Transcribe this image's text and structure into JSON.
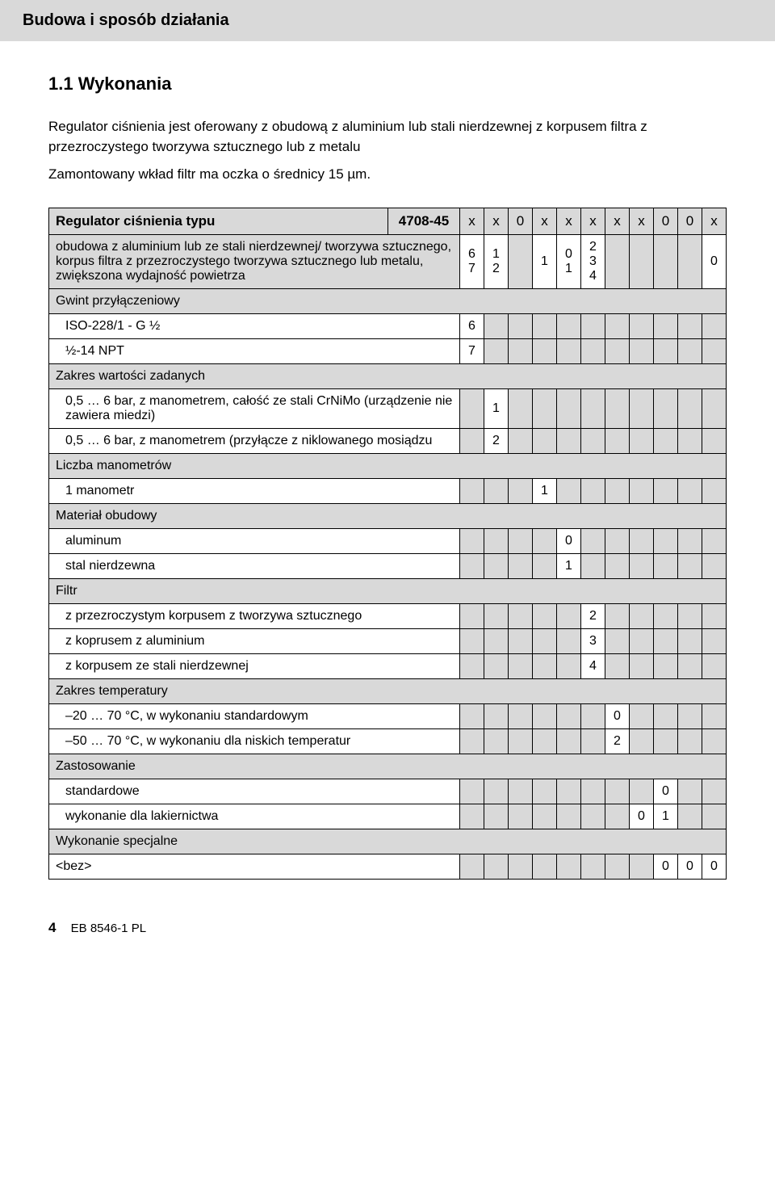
{
  "header_title": "Budowa i sposób działania",
  "section_title": "1.1 Wykonania",
  "paragraph1": "Regulator ciśnienia jest oferowany z obudową z aluminium lub stali nierdzewnej z korpusem filtra z przezroczystego tworzywa sztucznego lub z metalu",
  "paragraph2": "Zamontowany wkład filtr ma oczka o średnicy 15 µm.",
  "table": {
    "header_label": "Regulator ciśnienia typu",
    "header_code": "4708-45",
    "header_cols": [
      "x",
      "x",
      "0",
      "x",
      "x",
      "x",
      "x",
      "x",
      "0",
      "0",
      "x"
    ],
    "rows": [
      {
        "label": "obudowa z aluminium lub ze stali nierdzewnej/ tworzywa sztucznego, korpus filtra z przezroczystego tworzywa sztucznego lub metalu, zwiększona wydajność powietrza",
        "vals": [
          "6\n7",
          "1\n2",
          "",
          "1",
          "0\n1",
          "2\n3\n4",
          "",
          "",
          "",
          "",
          "0"
        ],
        "shade": true
      },
      {
        "label": "Gwint przyłączeniowy",
        "group": true
      },
      {
        "label": "ISO-228/1 - G ½",
        "indent": true,
        "vals": [
          "6",
          "",
          "",
          "",
          "",
          "",
          "",
          "",
          "",
          "",
          ""
        ]
      },
      {
        "label": "½-14 NPT",
        "indent": true,
        "vals": [
          "7",
          "",
          "",
          "",
          "",
          "",
          "",
          "",
          "",
          "",
          ""
        ]
      },
      {
        "label": "Zakres wartości zadanych",
        "group": true
      },
      {
        "label": "0,5 … 6 bar, z manometrem, całość ze stali CrNiMo (urządzenie nie zawiera miedzi)",
        "indent": true,
        "vals": [
          "",
          "1",
          "",
          "",
          "",
          "",
          "",
          "",
          "",
          "",
          ""
        ]
      },
      {
        "label": "0,5 … 6 bar, z manometrem (przyłącze z niklowanego mosiądzu",
        "indent": true,
        "vals": [
          "",
          "2",
          "",
          "",
          "",
          "",
          "",
          "",
          "",
          "",
          ""
        ]
      },
      {
        "label": "Liczba manometrów",
        "group": true
      },
      {
        "label": "1 manometr",
        "indent": true,
        "vals": [
          "",
          "",
          "",
          "1",
          "",
          "",
          "",
          "",
          "",
          "",
          ""
        ]
      },
      {
        "label": "Materiał obudowy",
        "group": true
      },
      {
        "label": "aluminum",
        "indent": true,
        "vals": [
          "",
          "",
          "",
          "",
          "0",
          "",
          "",
          "",
          "",
          "",
          ""
        ]
      },
      {
        "label": "stal nierdzewna",
        "indent": true,
        "vals": [
          "",
          "",
          "",
          "",
          "1",
          "",
          "",
          "",
          "",
          "",
          ""
        ]
      },
      {
        "label": "Filtr",
        "group": true
      },
      {
        "label": "z przezroczystym korpusem z tworzywa sztucznego",
        "indent": true,
        "vals": [
          "",
          "",
          "",
          "",
          "",
          "2",
          "",
          "",
          "",
          "",
          ""
        ]
      },
      {
        "label": "z koprusem z aluminium",
        "indent": true,
        "vals": [
          "",
          "",
          "",
          "",
          "",
          "3",
          "",
          "",
          "",
          "",
          ""
        ]
      },
      {
        "label": "z korpusem ze stali nierdzewnej",
        "indent": true,
        "vals": [
          "",
          "",
          "",
          "",
          "",
          "4",
          "",
          "",
          "",
          "",
          ""
        ]
      },
      {
        "label": "Zakres temperatury",
        "group": true
      },
      {
        "label": "–20 … 70 °C, w wykonaniu standardowym",
        "indent": true,
        "vals": [
          "",
          "",
          "",
          "",
          "",
          "",
          "0",
          "",
          "",
          "",
          ""
        ]
      },
      {
        "label": "–50 … 70 °C, w wykonaniu dla niskich temperatur",
        "indent": true,
        "vals": [
          "",
          "",
          "",
          "",
          "",
          "",
          "2",
          "",
          "",
          "",
          ""
        ]
      },
      {
        "label": "Zastosowanie",
        "group": true
      },
      {
        "label": "standardowe",
        "indent": true,
        "vals": [
          "",
          "",
          "",
          "",
          "",
          "",
          "",
          "",
          "0",
          "",
          ""
        ]
      },
      {
        "label": "wykonanie dla lakiernictwa",
        "indent": true,
        "vals": [
          "",
          "",
          "",
          "",
          "",
          "",
          "",
          "0",
          "1",
          "",
          ""
        ]
      },
      {
        "label": "Wykonanie specjalne",
        "group": true
      },
      {
        "label": "<bez>",
        "indent": false,
        "vals": [
          "",
          "",
          "",
          "",
          "",
          "",
          "",
          "",
          "0",
          "0",
          "0"
        ]
      }
    ]
  },
  "footer_page": "4",
  "footer_doc": "EB 8546-1 PL"
}
